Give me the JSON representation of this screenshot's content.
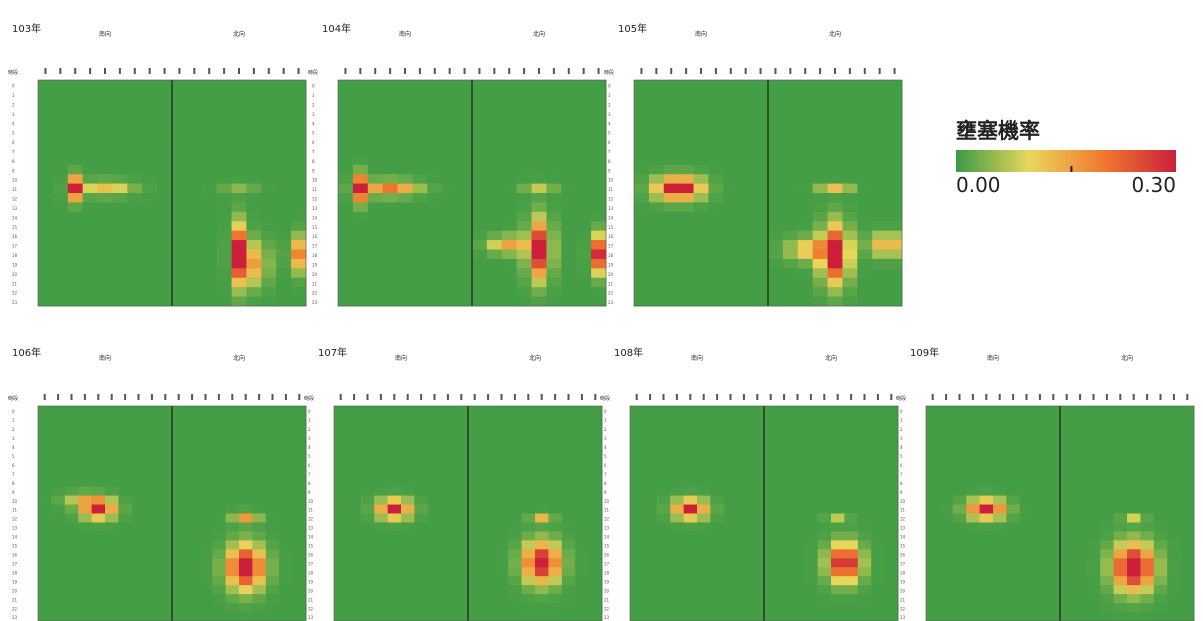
{
  "legend": {
    "title": "壅塞機率",
    "min_label": "0.00",
    "max_label": "0.30",
    "colors": [
      "#3a9a44",
      "#e8d85a",
      "#f07a30",
      "#cc1f3a"
    ]
  },
  "period_label": "時段",
  "chart_data": {
    "type": "heatmap",
    "value_range": [
      0,
      0.3
    ],
    "directions": [
      "南向",
      "北向"
    ],
    "hours": [
      0,
      1,
      2,
      3,
      4,
      5,
      6,
      7,
      8,
      9,
      10,
      11,
      12,
      13,
      14,
      15,
      16,
      17,
      18,
      19,
      20,
      21,
      22,
      23
    ],
    "panels": [
      {
        "year": "103年",
        "south_cols": 9,
        "north_cols": 9,
        "blobs": [
          {
            "dir": 0,
            "col": 2,
            "hour": 11,
            "amp": 0.32,
            "sx": 0.3,
            "sy": 0.8
          },
          {
            "dir": 0,
            "col": 4,
            "hour": 11,
            "amp": 0.12,
            "sx": 1.2,
            "sy": 0.5
          },
          {
            "dir": 1,
            "col": 4,
            "hour": 18,
            "amp": 0.32,
            "sx": 0.35,
            "sy": 2.0
          },
          {
            "dir": 1,
            "col": 5,
            "hour": 19,
            "amp": 0.15,
            "sx": 0.6,
            "sy": 1.5
          },
          {
            "dir": 1,
            "col": 8,
            "hour": 18,
            "amp": 0.18,
            "sx": 0.4,
            "sy": 1.2
          },
          {
            "dir": 1,
            "col": 4,
            "hour": 11,
            "amp": 0.04,
            "sx": 0.8,
            "sy": 0.4
          }
        ]
      },
      {
        "year": "104年",
        "south_cols": 9,
        "north_cols": 9,
        "blobs": [
          {
            "dir": 0,
            "col": 1,
            "hour": 11,
            "amp": 0.33,
            "sx": 0.35,
            "sy": 0.9
          },
          {
            "dir": 0,
            "col": 3,
            "hour": 11,
            "amp": 0.2,
            "sx": 1.2,
            "sy": 0.5
          },
          {
            "dir": 1,
            "col": 4,
            "hour": 17.5,
            "amp": 0.32,
            "sx": 0.5,
            "sy": 2.0
          },
          {
            "dir": 1,
            "col": 2,
            "hour": 17,
            "amp": 0.15,
            "sx": 0.9,
            "sy": 0.6
          },
          {
            "dir": 1,
            "col": 8,
            "hour": 18,
            "amp": 0.28,
            "sx": 0.35,
            "sy": 1.3
          },
          {
            "dir": 1,
            "col": 4,
            "hour": 11,
            "amp": 0.07,
            "sx": 0.7,
            "sy": 0.4
          }
        ]
      },
      {
        "year": "105年",
        "south_cols": 9,
        "north_cols": 9,
        "blobs": [
          {
            "dir": 0,
            "col": 2.5,
            "hour": 11,
            "amp": 0.34,
            "sx": 1.0,
            "sy": 0.8
          },
          {
            "dir": 1,
            "col": 4,
            "hour": 18,
            "amp": 0.34,
            "sx": 0.6,
            "sy": 2.0
          },
          {
            "dir": 1,
            "col": 2.5,
            "hour": 17.5,
            "amp": 0.14,
            "sx": 1.1,
            "sy": 0.8
          },
          {
            "dir": 1,
            "col": 7.5,
            "hour": 17,
            "amp": 0.15,
            "sx": 0.8,
            "sy": 0.8
          },
          {
            "dir": 1,
            "col": 4,
            "hour": 11,
            "amp": 0.12,
            "sx": 0.7,
            "sy": 0.3
          }
        ]
      },
      {
        "year": "106年",
        "south_cols": 10,
        "north_cols": 10,
        "blobs": [
          {
            "dir": 0,
            "col": 4,
            "hour": 11,
            "amp": 0.3,
            "sx": 0.8,
            "sy": 0.7
          },
          {
            "dir": 0,
            "col": 3,
            "hour": 10,
            "amp": 0.1,
            "sx": 1.0,
            "sy": 0.5
          },
          {
            "dir": 1,
            "col": 5,
            "hour": 17.5,
            "amp": 0.34,
            "sx": 0.9,
            "sy": 1.6
          },
          {
            "dir": 1,
            "col": 5,
            "hour": 12,
            "amp": 0.16,
            "sx": 0.6,
            "sy": 0.4
          }
        ]
      },
      {
        "year": "107年",
        "south_cols": 10,
        "north_cols": 10,
        "blobs": [
          {
            "dir": 0,
            "col": 4,
            "hour": 11,
            "amp": 0.3,
            "sx": 0.8,
            "sy": 0.7
          },
          {
            "dir": 1,
            "col": 5,
            "hour": 17,
            "amp": 0.32,
            "sx": 0.9,
            "sy": 1.5
          },
          {
            "dir": 1,
            "col": 5,
            "hour": 12,
            "amp": 0.13,
            "sx": 0.5,
            "sy": 0.3
          }
        ]
      },
      {
        "year": "108年",
        "south_cols": 10,
        "north_cols": 10,
        "blobs": [
          {
            "dir": 0,
            "col": 4,
            "hour": 11,
            "amp": 0.3,
            "sx": 0.8,
            "sy": 0.7
          },
          {
            "dir": 1,
            "col": 5.5,
            "hour": 17,
            "amp": 0.32,
            "sx": 0.8,
            "sy": 1.4
          },
          {
            "dir": 1,
            "col": 5,
            "hour": 12,
            "amp": 0.07,
            "sx": 0.5,
            "sy": 0.3
          }
        ]
      },
      {
        "year": "109年",
        "south_cols": 10,
        "north_cols": 10,
        "blobs": [
          {
            "dir": 0,
            "col": 4,
            "hour": 11,
            "amp": 0.3,
            "sx": 0.9,
            "sy": 0.7
          },
          {
            "dir": 1,
            "col": 5,
            "hour": 17.5,
            "amp": 0.36,
            "sx": 1.0,
            "sy": 1.7
          },
          {
            "dir": 1,
            "col": 5,
            "hour": 12,
            "amp": 0.08,
            "sx": 0.5,
            "sy": 0.3
          }
        ]
      }
    ]
  }
}
